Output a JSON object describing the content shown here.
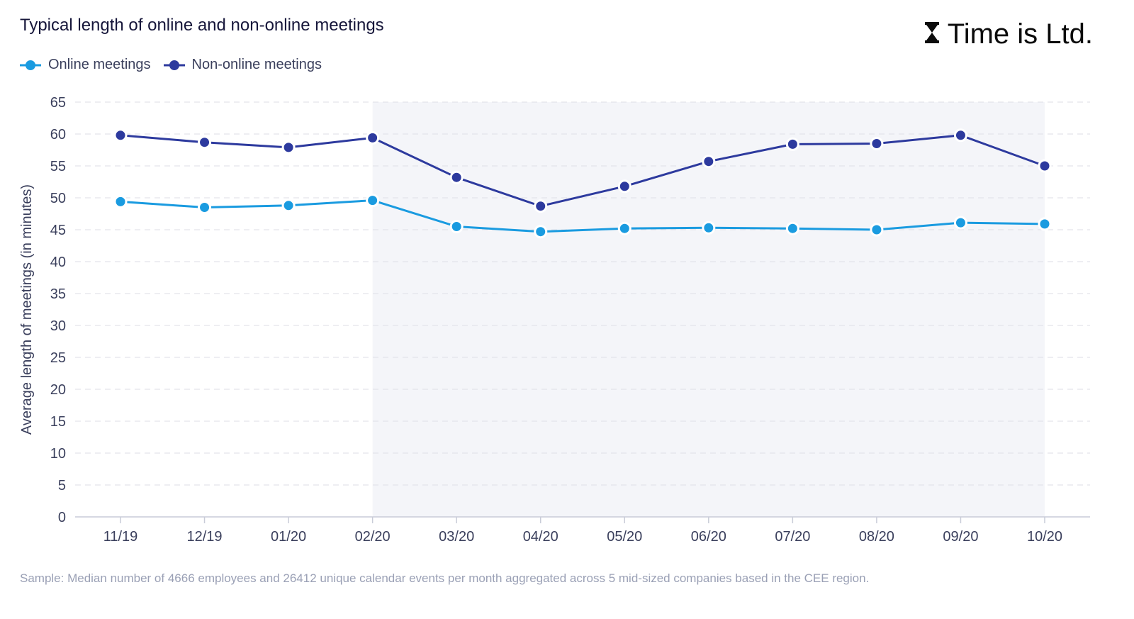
{
  "header": {
    "title": "Typical length of online and non-online meetings",
    "brand": "Time is Ltd."
  },
  "footnote": "Sample: Median number of 4666 employees and 26412 unique calendar events per month aggregated across 5 mid-sized companies based in the CEE region.",
  "colors": {
    "online": "#1a9be0",
    "non_online": "#2d3a9e",
    "shade": "#f4f5f9",
    "grid": "#dedee6",
    "axis_text": "#3a3f5c"
  },
  "chart_data": {
    "type": "line",
    "title": "Typical length of online and non-online meetings",
    "xlabel": "",
    "ylabel": "Average length of meetings (in minutes)",
    "categories": [
      "11/19",
      "12/19",
      "01/20",
      "02/20",
      "03/20",
      "04/20",
      "05/20",
      "06/20",
      "07/20",
      "08/20",
      "09/20",
      "10/20"
    ],
    "ylim": [
      0,
      65
    ],
    "yticks": [
      0,
      5,
      10,
      15,
      20,
      25,
      30,
      35,
      40,
      45,
      50,
      55,
      60,
      65
    ],
    "grid": true,
    "legend": "top-left",
    "shaded_range": [
      "02/20",
      "10/20"
    ],
    "series": [
      {
        "name": "Online meetings",
        "color": "#1a9be0",
        "values": [
          49.4,
          48.5,
          48.8,
          49.6,
          45.5,
          44.7,
          45.2,
          45.3,
          45.2,
          45.0,
          46.1,
          45.9
        ]
      },
      {
        "name": "Non-online meetings",
        "color": "#2d3a9e",
        "values": [
          59.8,
          58.7,
          57.9,
          59.4,
          53.2,
          48.7,
          51.8,
          55.7,
          58.4,
          58.5,
          59.8,
          55.0
        ]
      }
    ]
  }
}
